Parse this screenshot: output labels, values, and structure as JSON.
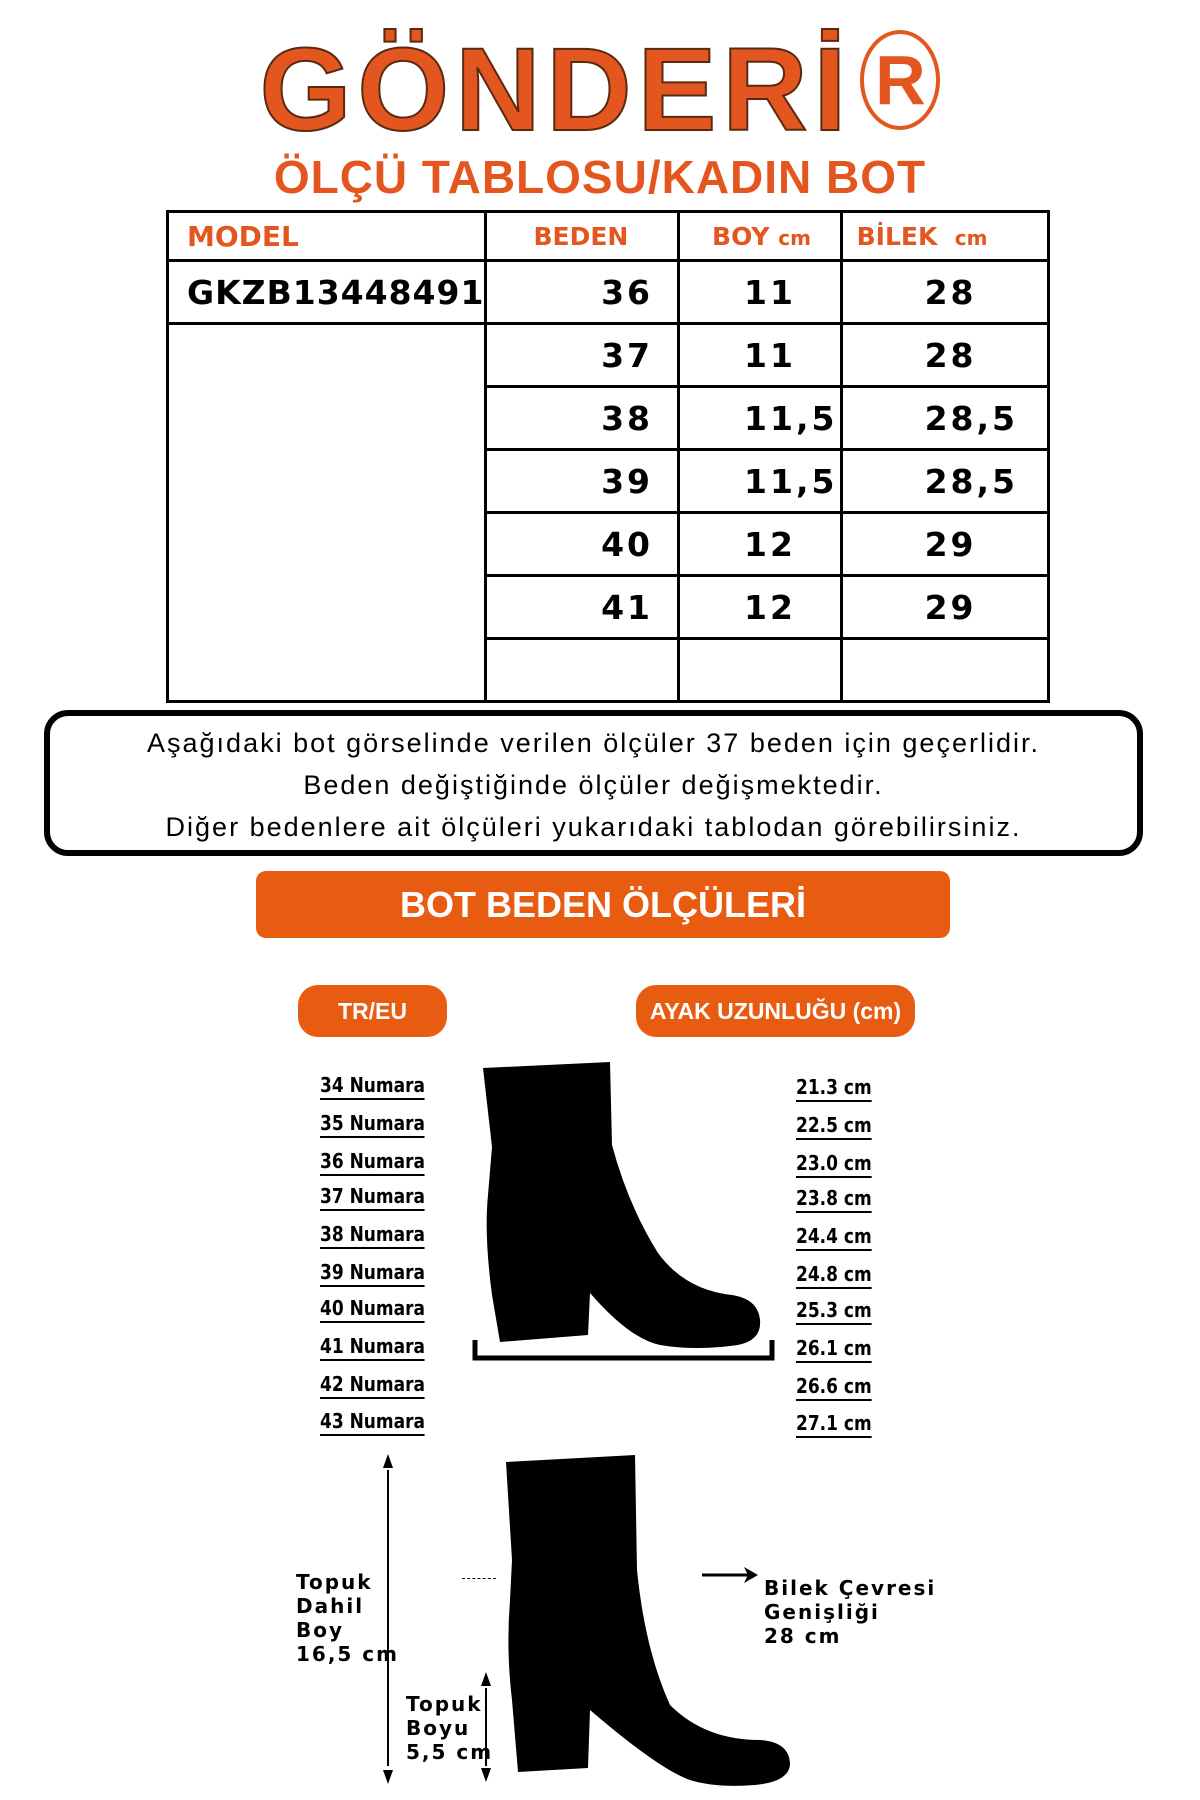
{
  "brand": {
    "logo": "GÖNDERİ",
    "registered": "R",
    "color": "#e4561f"
  },
  "subtitle": "ÖLÇÜ TABLOSU/KADIN BOT",
  "table": {
    "headers": {
      "model": "MODEL",
      "beden": "BEDEN",
      "boy": "BOY",
      "boy_unit": "cm",
      "bilek": "BİLEK",
      "bilek_unit": "cm"
    },
    "model": "GKZB13448491",
    "rows": [
      {
        "beden": "36",
        "boy": "11",
        "bilek": "28"
      },
      {
        "beden": "37",
        "boy": "11",
        "bilek": "28"
      },
      {
        "beden": "38",
        "boy": "11,5",
        "bilek": "28,5"
      },
      {
        "beden": "39",
        "boy": "11,5",
        "bilek": "28,5"
      },
      {
        "beden": "40",
        "boy": "12",
        "bilek": "29"
      },
      {
        "beden": "41",
        "boy": "12",
        "bilek": "29"
      }
    ]
  },
  "notice": {
    "line1": "Aşağıdaki bot görselinde verilen ölçüler 37 beden için geçerlidir.",
    "line2": "Beden değiştiğinde ölçüler değişmektedir.",
    "line3": "Diğer bedenlere ait ölçüleri yukarıdaki tablodan görebilirsiniz."
  },
  "banner": "BOT BEDEN ÖLÇÜLERİ",
  "accent": "#e85c12",
  "size_chart": {
    "col1_header": "TR/EU",
    "col2_header": "AYAK UZUNLUĞU (cm)",
    "sizes": [
      "34 Numara",
      "35 Numara",
      "36 Numara",
      "37 Numara",
      "38 Numara",
      "39 Numara",
      "40 Numara",
      "41 Numara",
      "42 Numara",
      "43 Numara"
    ],
    "lengths": [
      "21.3 cm",
      "22.5 cm",
      "23.0 cm",
      "23.8 cm",
      "24.4 cm",
      "24.8 cm",
      "25.3 cm",
      "26.1 cm",
      "26.6 cm",
      "27.1 cm"
    ]
  },
  "measurements": {
    "total_height": {
      "l1": "Topuk",
      "l2": "Dahil",
      "l3": "Boy",
      "l4": "16,5 cm"
    },
    "heel_height": {
      "l1": "Topuk",
      "l2": "Boyu",
      "l3": "5,5 cm"
    },
    "ankle": {
      "l1": "Bilek Çevresi",
      "l2": "Genişliği",
      "l3": "28 cm"
    }
  }
}
